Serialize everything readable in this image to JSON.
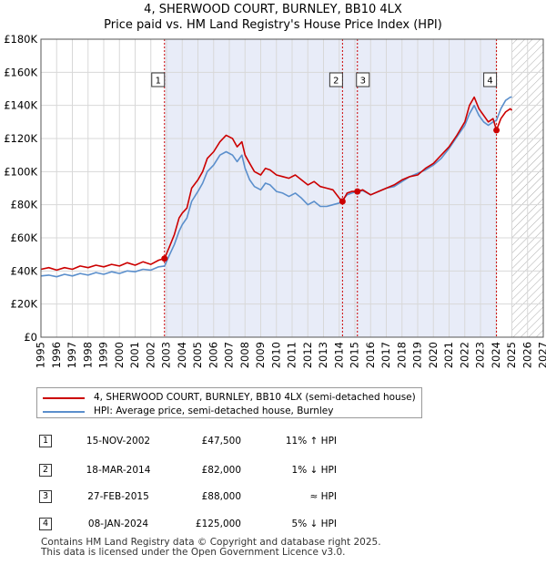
{
  "title_line1": "4, SHERWOOD COURT, BURNLEY, BB10 4LX",
  "title_line2": "Price paid vs. HM Land Registry's House Price Index (HPI)",
  "colors": {
    "price_line": "#cc0000",
    "hpi_line": "#5b8fcc",
    "shade": "#e8ecf8",
    "hatch": "#aaaaaa",
    "vline": "#cc0000",
    "grid": "#d8d8d8"
  },
  "chart_data": {
    "type": "line",
    "title": "4, SHERWOOD COURT, BURNLEY, BB10 4LX — Price paid vs. HM Land Registry's House Price Index (HPI)",
    "xlabel": "",
    "ylabel": "",
    "xlim": [
      1995,
      2027
    ],
    "ylim": [
      0,
      180000
    ],
    "y_ticks": [
      {
        "value": 0,
        "label": "£0"
      },
      {
        "value": 20000,
        "label": "£20K"
      },
      {
        "value": 40000,
        "label": "£40K"
      },
      {
        "value": 60000,
        "label": "£60K"
      },
      {
        "value": 80000,
        "label": "£80K"
      },
      {
        "value": 100000,
        "label": "£100K"
      },
      {
        "value": 120000,
        "label": "£120K"
      },
      {
        "value": 140000,
        "label": "£140K"
      },
      {
        "value": 160000,
        "label": "£160K"
      },
      {
        "value": 180000,
        "label": "£180K"
      }
    ],
    "x_ticks": [
      "1995",
      "1996",
      "1997",
      "1998",
      "1999",
      "2000",
      "2001",
      "2002",
      "2003",
      "2004",
      "2005",
      "2006",
      "2007",
      "2008",
      "2009",
      "2010",
      "2011",
      "2012",
      "2013",
      "2014",
      "2015",
      "2016",
      "2017",
      "2018",
      "2019",
      "2020",
      "2021",
      "2022",
      "2023",
      "2024",
      "2025",
      "2026",
      "2027"
    ],
    "shaded_region": [
      2002.87,
      2024.02
    ],
    "future_hatch_start": 2025.0,
    "series": [
      {
        "name": "4, SHERWOOD COURT, BURNLEY, BB10 4LX (semi-detached house)",
        "x": [
          1995.0,
          1995.5,
          1996.0,
          1996.5,
          1997.0,
          1997.5,
          1998.0,
          1998.5,
          1999.0,
          1999.5,
          2000.0,
          2000.5,
          2001.0,
          2001.5,
          2002.0,
          2002.5,
          2002.87,
          2003.2,
          2003.5,
          2003.8,
          2004.0,
          2004.3,
          2004.6,
          2005.0,
          2005.3,
          2005.6,
          2006.0,
          2006.4,
          2006.8,
          2007.2,
          2007.5,
          2007.8,
          2008.0,
          2008.3,
          2008.6,
          2009.0,
          2009.3,
          2009.6,
          2010.0,
          2010.4,
          2010.8,
          2011.2,
          2011.6,
          2012.0,
          2012.4,
          2012.8,
          2013.2,
          2013.6,
          2014.0,
          2014.21,
          2014.5,
          2014.8,
          2015.16,
          2015.5,
          2016.0,
          2016.5,
          2017.0,
          2017.5,
          2018.0,
          2018.5,
          2019.0,
          2019.5,
          2020.0,
          2020.5,
          2021.0,
          2021.5,
          2022.0,
          2022.3,
          2022.6,
          2022.9,
          2023.2,
          2023.5,
          2023.8,
          2024.02,
          2024.3,
          2024.6,
          2024.9,
          2025.0
        ],
        "values": [
          41000,
          42000,
          40500,
          42000,
          41000,
          43000,
          42000,
          43500,
          42500,
          44000,
          43000,
          45000,
          43500,
          45500,
          44000,
          46500,
          47500,
          55000,
          62000,
          72000,
          75000,
          78000,
          90000,
          95000,
          100000,
          108000,
          112000,
          118000,
          122000,
          120000,
          115000,
          118000,
          110000,
          105000,
          100000,
          98000,
          102000,
          101000,
          98000,
          97000,
          96000,
          98000,
          95000,
          92000,
          94000,
          91000,
          90000,
          89000,
          84000,
          82000,
          87000,
          88000,
          88000,
          89000,
          86000,
          88000,
          90000,
          92000,
          95000,
          97000,
          98000,
          102000,
          105000,
          110000,
          115000,
          122000,
          130000,
          140000,
          145000,
          138000,
          134000,
          130000,
          132000,
          125000,
          132000,
          136000,
          138000,
          137000
        ]
      },
      {
        "name": "HPI: Average price, semi-detached house, Burnley",
        "x": [
          1995.0,
          1995.5,
          1996.0,
          1996.5,
          1997.0,
          1997.5,
          1998.0,
          1998.5,
          1999.0,
          1999.5,
          2000.0,
          2000.5,
          2001.0,
          2001.5,
          2002.0,
          2002.5,
          2002.87,
          2003.2,
          2003.5,
          2003.8,
          2004.0,
          2004.3,
          2004.6,
          2005.0,
          2005.3,
          2005.6,
          2006.0,
          2006.4,
          2006.8,
          2007.2,
          2007.5,
          2007.8,
          2008.0,
          2008.3,
          2008.6,
          2009.0,
          2009.3,
          2009.6,
          2010.0,
          2010.4,
          2010.8,
          2011.2,
          2011.6,
          2012.0,
          2012.4,
          2012.8,
          2013.2,
          2013.6,
          2014.0,
          2014.21,
          2014.5,
          2014.8,
          2015.16,
          2015.5,
          2016.0,
          2016.5,
          2017.0,
          2017.5,
          2018.0,
          2018.5,
          2019.0,
          2019.5,
          2020.0,
          2020.5,
          2021.0,
          2021.5,
          2022.0,
          2022.3,
          2022.6,
          2022.9,
          2023.2,
          2023.5,
          2023.8,
          2024.02,
          2024.3,
          2024.6,
          2024.9,
          2025.0
        ],
        "values": [
          37000,
          37500,
          36500,
          38000,
          37000,
          38500,
          37500,
          39000,
          38000,
          39500,
          38500,
          40000,
          39500,
          41000,
          40500,
          42500,
          43000,
          50000,
          56000,
          64000,
          68000,
          72000,
          82000,
          88000,
          93000,
          100000,
          104000,
          110000,
          112000,
          110000,
          106000,
          110000,
          102000,
          95000,
          91000,
          89000,
          93000,
          92000,
          88000,
          87000,
          85000,
          87000,
          84000,
          80000,
          82000,
          79000,
          79000,
          80000,
          81000,
          83000,
          86000,
          87000,
          88000,
          88500,
          86000,
          88000,
          90000,
          91000,
          94000,
          97000,
          99000,
          101000,
          104000,
          108000,
          114000,
          121000,
          128000,
          135000,
          140000,
          134000,
          130000,
          128000,
          130000,
          131000,
          138000,
          143000,
          145000,
          145000
        ]
      }
    ],
    "sales": [
      {
        "num": "1",
        "x": 2002.87,
        "value": 47500
      },
      {
        "num": "2",
        "x": 2014.21,
        "value": 82000
      },
      {
        "num": "3",
        "x": 2015.16,
        "value": 88000
      },
      {
        "num": "4",
        "x": 2024.02,
        "value": 125000
      }
    ]
  },
  "legend": {
    "price_label": "4, SHERWOOD COURT, BURNLEY, BB10 4LX (semi-detached house)",
    "hpi_label": "HPI: Average price, semi-detached house, Burnley"
  },
  "sales_table": [
    {
      "num": "1",
      "date": "15-NOV-2002",
      "price": "£47,500",
      "hpi": "11% ↑ HPI"
    },
    {
      "num": "2",
      "date": "18-MAR-2014",
      "price": "£82,000",
      "hpi": "1% ↓ HPI"
    },
    {
      "num": "3",
      "date": "27-FEB-2015",
      "price": "£88,000",
      "hpi": "≈ HPI"
    },
    {
      "num": "4",
      "date": "08-JAN-2024",
      "price": "£125,000",
      "hpi": "5% ↓ HPI"
    }
  ],
  "footer": {
    "line1": "Contains HM Land Registry data © Copyright and database right 2025.",
    "line2": "This data is licensed under the Open Government Licence v3.0."
  }
}
